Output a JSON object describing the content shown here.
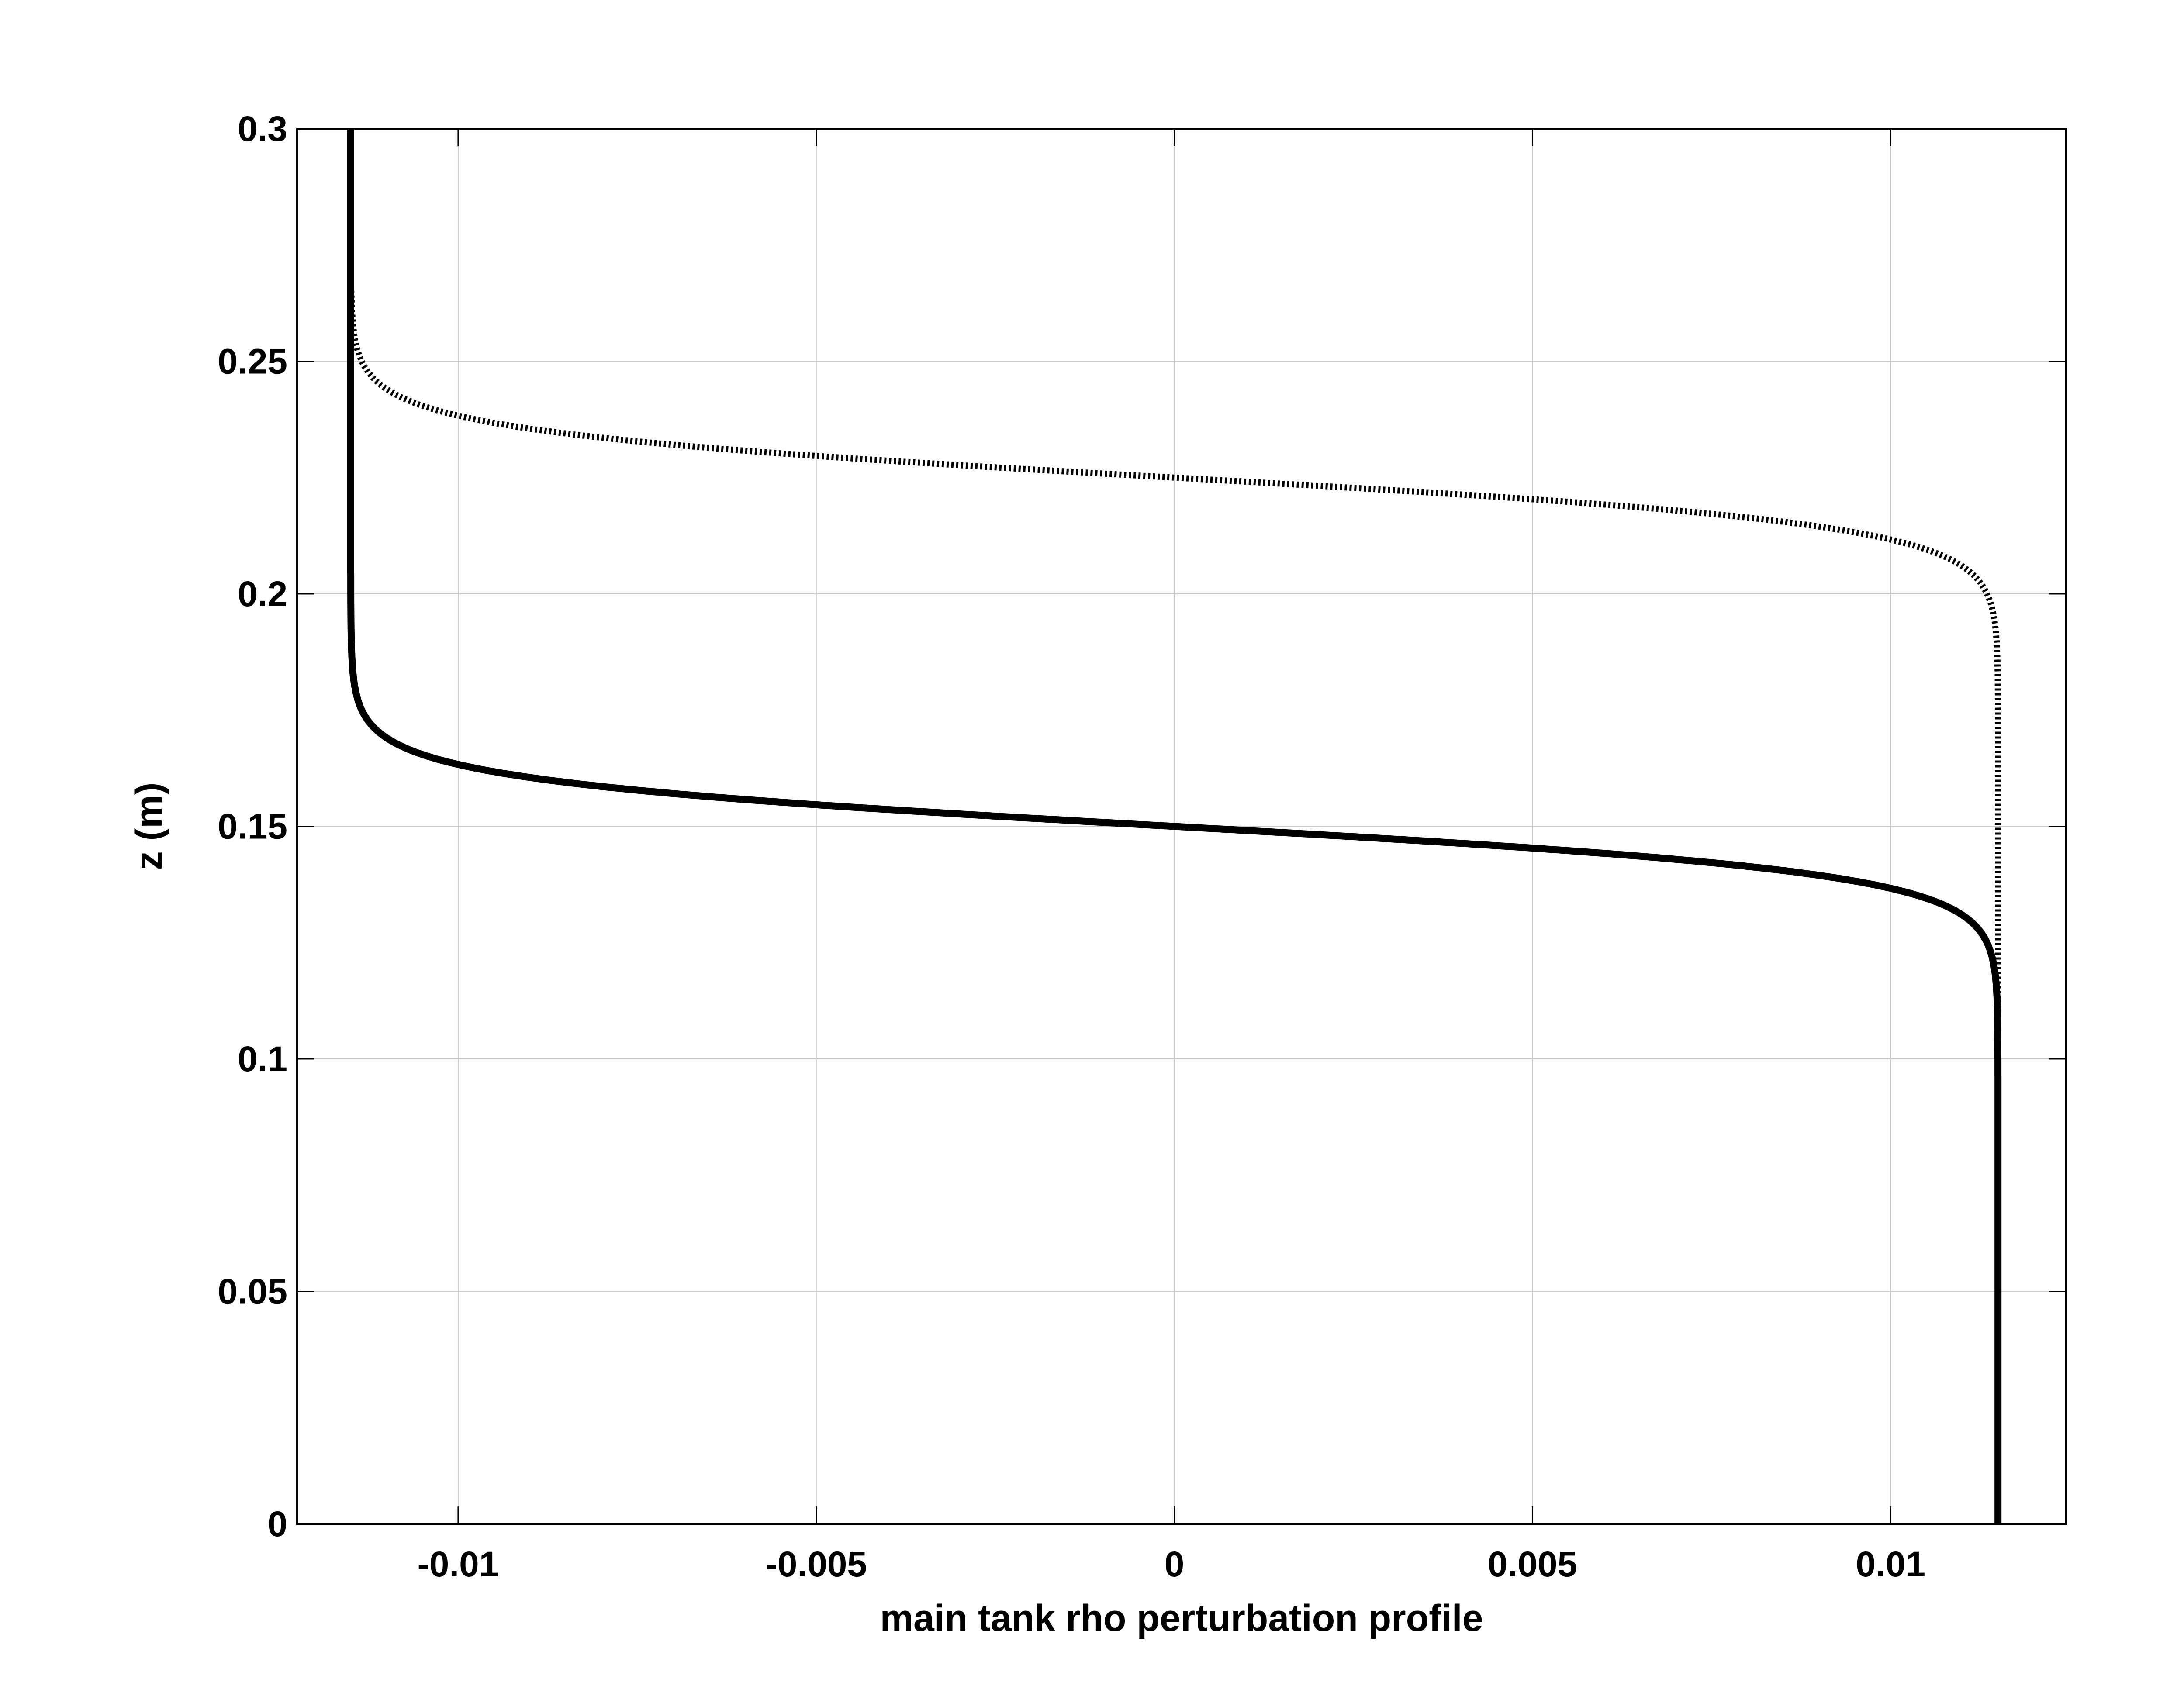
{
  "chart_data": {
    "type": "line",
    "xlabel": "main tank rho perturbation profile",
    "ylabel": "z (m)",
    "xlim": [
      -0.01225,
      0.01245
    ],
    "ylim": [
      0,
      0.3
    ],
    "grid": true,
    "xticks": [
      -0.01,
      -0.005,
      0,
      0.005,
      0.01
    ],
    "xtick_labels": [
      "-0.01",
      "-0.005",
      "0",
      "0.005",
      "0.01"
    ],
    "yticks": [
      0,
      0.05,
      0.1,
      0.15,
      0.2,
      0.25,
      0.3
    ],
    "ytick_labels": [
      "0",
      "0.05",
      "0.1",
      "0.15",
      "0.2",
      "0.25",
      "0.3"
    ],
    "series": [
      {
        "style": "solid",
        "color": "#000000",
        "profile": "tanh",
        "amplitude": 0.0115,
        "center_z": 0.15,
        "half_width": 0.01,
        "points": [
          [
            0.0115,
            0
          ],
          [
            0.0115,
            0.12
          ],
          [
            0.0114,
            0.125
          ],
          [
            0.011,
            0.13
          ],
          [
            0.0102,
            0.135
          ],
          [
            0.0085,
            0.14
          ],
          [
            0.0052,
            0.145
          ],
          [
            0.0,
            0.15
          ],
          [
            -0.0052,
            0.155
          ],
          [
            -0.0085,
            0.16
          ],
          [
            -0.0102,
            0.165
          ],
          [
            -0.011,
            0.17
          ],
          [
            -0.0114,
            0.175
          ],
          [
            -0.0115,
            0.18
          ],
          [
            -0.0115,
            0.3
          ]
        ]
      },
      {
        "style": "dotted",
        "color": "#000000",
        "profile": "tanh",
        "amplitude": 0.0115,
        "center_z": 0.225,
        "half_width": 0.01,
        "points": [
          [
            0.0115,
            0.11
          ],
          [
            0.0115,
            0.195
          ],
          [
            0.0114,
            0.2
          ],
          [
            0.011,
            0.205
          ],
          [
            0.0102,
            0.21
          ],
          [
            0.0085,
            0.215
          ],
          [
            0.0052,
            0.22
          ],
          [
            0.0,
            0.225
          ],
          [
            -0.0052,
            0.23
          ],
          [
            -0.0085,
            0.235
          ],
          [
            -0.0102,
            0.24
          ],
          [
            -0.011,
            0.245
          ],
          [
            -0.0114,
            0.25
          ],
          [
            -0.0115,
            0.255
          ],
          [
            -0.0115,
            0.3
          ]
        ]
      }
    ]
  }
}
